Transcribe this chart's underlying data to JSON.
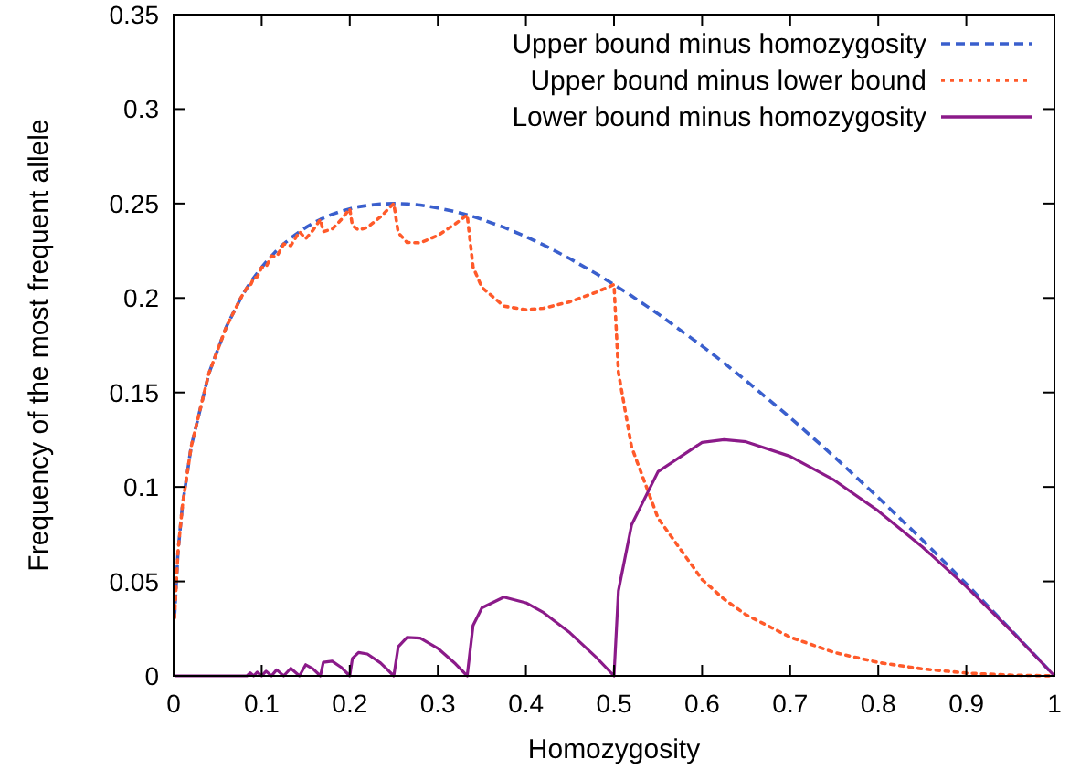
{
  "chart_data": {
    "type": "line",
    "xlabel": "Homozygosity",
    "ylabel": "Frequency of the most frequent allele",
    "x": [
      0.001,
      0.005,
      0.01,
      0.02,
      0.04,
      0.06,
      0.0769,
      0.0833,
      0.087,
      0.0909,
      0.095,
      0.1,
      0.105,
      0.1111,
      0.117,
      0.125,
      0.133,
      0.1429,
      0.15,
      0.158,
      0.1667,
      0.17,
      0.18,
      0.19,
      0.2,
      0.203,
      0.21,
      0.22,
      0.235,
      0.25,
      0.255,
      0.265,
      0.28,
      0.3,
      0.32,
      0.3333,
      0.34,
      0.35,
      0.375,
      0.4,
      0.42,
      0.45,
      0.48,
      0.5,
      0.505,
      0.52,
      0.55,
      0.6,
      0.625,
      0.65,
      0.7,
      0.75,
      0.8,
      0.85,
      0.9,
      0.95,
      1
    ],
    "series": [
      {
        "name": "Upper bound minus homozygosity",
        "color": "#3a5fcd",
        "line_style": "dashed",
        "values": [
          0.0306,
          0.0657,
          0.09,
          0.1214,
          0.16,
          0.1849,
          0.2005,
          0.2054,
          0.208,
          0.2106,
          0.2132,
          0.2162,
          0.219,
          0.2222,
          0.2251,
          0.2286,
          0.2317,
          0.2351,
          0.2373,
          0.2395,
          0.2416,
          0.2423,
          0.2443,
          0.2459,
          0.2472,
          0.2476,
          0.2483,
          0.249,
          0.2498,
          0.25,
          0.25,
          0.2498,
          0.2492,
          0.2477,
          0.2457,
          0.244,
          0.2431,
          0.2416,
          0.2374,
          0.2325,
          0.2281,
          0.2208,
          0.2128,
          0.2071,
          0.2056,
          0.2011,
          0.1916,
          0.1746,
          0.1656,
          0.1562,
          0.1367,
          0.116,
          0.0944,
          0.072,
          0.0487,
          0.0247,
          0
        ]
      },
      {
        "name": "Upper bound minus lower bound",
        "color": "#ff5a2a",
        "line_style": "dotted",
        "values": [
          0.0306,
          0.0657,
          0.09,
          0.1214,
          0.16,
          0.1849,
          0.2005,
          0.2054,
          0.2064,
          0.2106,
          0.2112,
          0.2162,
          0.2165,
          0.2222,
          0.2219,
          0.2286,
          0.2277,
          0.2351,
          0.2314,
          0.2357,
          0.2416,
          0.2351,
          0.2365,
          0.2413,
          0.2472,
          0.2384,
          0.2359,
          0.2374,
          0.243,
          0.25,
          0.2346,
          0.2294,
          0.2292,
          0.2331,
          0.2393,
          0.244,
          0.2164,
          0.2056,
          0.1957,
          0.1938,
          0.1946,
          0.198,
          0.2031,
          0.2071,
          0.1606,
          0.1211,
          0.0835,
          0.051,
          0.0406,
          0.0323,
          0.0205,
          0.0124,
          0.0071,
          0.0037,
          0.0015,
          0.0004,
          0
        ]
      },
      {
        "name": "Lower bound minus homozygosity",
        "color": "#8b1a89",
        "line_style": "solid",
        "values": [
          0,
          0,
          0,
          0,
          0,
          0,
          0,
          0,
          0.0016,
          0,
          0.002,
          0,
          0.0025,
          0,
          0.0032,
          0,
          0.004,
          0,
          0.0059,
          0.0038,
          0,
          0.0072,
          0.0078,
          0.0046,
          0,
          0.0092,
          0.0124,
          0.0116,
          0.0068,
          0,
          0.0154,
          0.0204,
          0.02,
          0.0146,
          0.0064,
          0,
          0.0267,
          0.036,
          0.0417,
          0.0387,
          0.0335,
          0.0228,
          0.0097,
          0,
          0.045,
          0.08,
          0.1081,
          0.1236,
          0.125,
          0.1239,
          0.1162,
          0.1036,
          0.0873,
          0.0683,
          0.0472,
          0.0243,
          0
        ]
      }
    ],
    "xlim": [
      0,
      1
    ],
    "xticks": [
      0,
      0.1,
      0.2,
      0.3,
      0.4,
      0.5,
      0.6,
      0.7,
      0.8,
      0.9,
      1
    ],
    "ylim": [
      0,
      0.35
    ],
    "yticks": [
      0,
      0.05,
      0.1,
      0.15,
      0.2,
      0.25,
      0.3,
      0.35
    ],
    "grid": false,
    "legend": "top right",
    "marker": "none"
  }
}
